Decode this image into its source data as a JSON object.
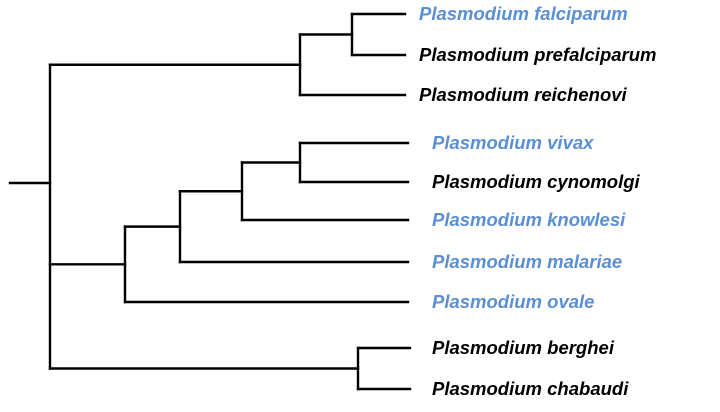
{
  "colors": {
    "branch": "#000000",
    "highlight": "#5b8fd4",
    "normal": "#000000"
  },
  "taxa": [
    {
      "id": "falciparum",
      "label": "Plasmodium falciparum",
      "highlight": true
    },
    {
      "id": "prefalciparum",
      "label": "Plasmodium prefalciparum",
      "highlight": false
    },
    {
      "id": "reichenovi",
      "label": "Plasmodium reichenovi",
      "highlight": false
    },
    {
      "id": "vivax",
      "label": "Plasmodium vivax",
      "highlight": true
    },
    {
      "id": "cynomolgi",
      "label": "Plasmodium cynomolgi",
      "highlight": false
    },
    {
      "id": "knowlesi",
      "label": "Plasmodium knowlesi",
      "highlight": true
    },
    {
      "id": "malariae",
      "label": "Plasmodium malariae",
      "highlight": true
    },
    {
      "id": "ovale",
      "label": "Plasmodium ovale",
      "highlight": true
    },
    {
      "id": "berghei",
      "label": "Plasmodium berghei",
      "highlight": false
    },
    {
      "id": "chabaudi",
      "label": "Plasmodium chabaudi",
      "highlight": false
    }
  ],
  "tree": {
    "children": [
      {
        "children": [
          {
            "children": [
              {
                "taxon": "falciparum"
              },
              {
                "taxon": "prefalciparum"
              }
            ]
          },
          {
            "taxon": "reichenovi"
          }
        ]
      },
      {
        "children": [
          {
            "children": [
              {
                "children": [
                  {
                    "children": [
                      {
                        "taxon": "vivax"
                      },
                      {
                        "taxon": "cynomolgi"
                      }
                    ]
                  },
                  {
                    "taxon": "knowlesi"
                  }
                ]
              },
              {
                "taxon": "malariae"
              }
            ]
          },
          {
            "taxon": "ovale"
          }
        ]
      },
      {
        "children": [
          {
            "taxon": "berghei"
          },
          {
            "taxon": "chabaudi"
          }
        ]
      }
    ]
  }
}
